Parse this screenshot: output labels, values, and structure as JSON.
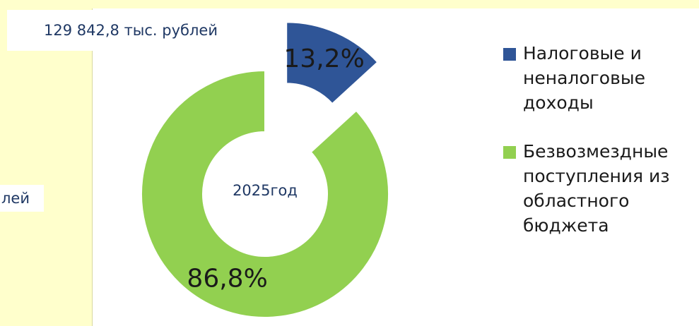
{
  "chart_data": {
    "type": "doughnut",
    "categories": [
      "Налоговые и неналоговые доходы",
      "Безвозмездные поступления из областного бюджета"
    ],
    "values": [
      13.2,
      86.8
    ],
    "value_labels": [
      "13,2%",
      "86,8%"
    ],
    "colors": [
      "#2f5597",
      "#92d050"
    ],
    "exploded": [
      true,
      false
    ],
    "center_label": "2025год",
    "annotations": [
      "129 842,8 тыс. рублей",
      "лей"
    ],
    "legend": "right"
  }
}
